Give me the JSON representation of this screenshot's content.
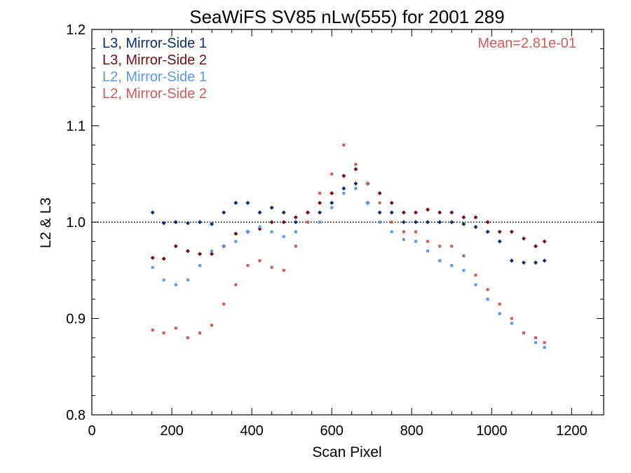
{
  "chart_data": {
    "type": "scatter",
    "title": "SeaWiFS SV85 nLw(555) for 2001 289",
    "xlabel": "Scan Pixel",
    "ylabel": "L2 & L3",
    "xlim": [
      0,
      1280
    ],
    "ylim": [
      0.8,
      1.2
    ],
    "x_ticks": [
      0,
      200,
      400,
      600,
      800,
      1000,
      1200
    ],
    "y_ticks": [
      0.8,
      0.9,
      1.0,
      1.1,
      1.2
    ],
    "x_tick_labels": [
      "0",
      "200",
      "400",
      "600",
      "800",
      "1000",
      "1200"
    ],
    "y_tick_labels": [
      "0.8",
      "0.9",
      "1.0",
      "1.1",
      "1.2"
    ],
    "reference_line": 1.0,
    "annotation": "Mean=2.81e-01",
    "annotation_color": "#cd5c5c",
    "legend_position": "top-left",
    "series": [
      {
        "name": "L3, Mirror-Side 1",
        "color": "#0b2f6b",
        "marker": "diamond",
        "points": [
          [
            152,
            1.01
          ],
          [
            180,
            0.999
          ],
          [
            210,
            1.0
          ],
          [
            240,
            0.999
          ],
          [
            270,
            1.0
          ],
          [
            300,
            0.998
          ],
          [
            330,
            1.01
          ],
          [
            360,
            1.02
          ],
          [
            390,
            1.02
          ],
          [
            420,
            1.01
          ],
          [
            450,
            1.015
          ],
          [
            480,
            1.01
          ],
          [
            510,
            1.0
          ],
          [
            540,
            1.01
          ],
          [
            570,
            1.01
          ],
          [
            600,
            1.02
          ],
          [
            630,
            1.035
          ],
          [
            660,
            1.04
          ],
          [
            690,
            1.02
          ],
          [
            720,
            1.01
          ],
          [
            750,
            1.01
          ],
          [
            780,
            1.0
          ],
          [
            810,
            1.0
          ],
          [
            840,
            1.0
          ],
          [
            870,
            1.0
          ],
          [
            900,
            1.0
          ],
          [
            930,
            0.998
          ],
          [
            960,
            0.995
          ],
          [
            990,
            0.99
          ],
          [
            1020,
            0.98
          ],
          [
            1050,
            0.96
          ],
          [
            1080,
            0.958
          ],
          [
            1110,
            0.958
          ],
          [
            1132,
            0.96
          ]
        ]
      },
      {
        "name": "L3, Mirror-Side 2",
        "color": "#6e0f1a",
        "marker": "diamond",
        "points": [
          [
            152,
            0.963
          ],
          [
            180,
            0.962
          ],
          [
            210,
            0.975
          ],
          [
            240,
            0.97
          ],
          [
            270,
            0.967
          ],
          [
            300,
            0.967
          ],
          [
            330,
            0.975
          ],
          [
            360,
            0.988
          ],
          [
            390,
            0.99
          ],
          [
            420,
            0.993
          ],
          [
            450,
            1.0
          ],
          [
            480,
            1.0
          ],
          [
            510,
            1.005
          ],
          [
            540,
            1.01
          ],
          [
            570,
            1.02
          ],
          [
            600,
            1.03
          ],
          [
            630,
            1.048
          ],
          [
            660,
            1.055
          ],
          [
            690,
            1.04
          ],
          [
            720,
            1.03
          ],
          [
            750,
            1.02
          ],
          [
            780,
            1.01
          ],
          [
            810,
            1.01
          ],
          [
            840,
            1.013
          ],
          [
            870,
            1.01
          ],
          [
            900,
            1.01
          ],
          [
            930,
            1.005
          ],
          [
            960,
            1.005
          ],
          [
            990,
            1.0
          ],
          [
            1020,
            0.99
          ],
          [
            1050,
            0.99
          ],
          [
            1080,
            0.983
          ],
          [
            1110,
            0.975
          ],
          [
            1132,
            0.98
          ]
        ]
      },
      {
        "name": "L2, Mirror-Side 1",
        "color": "#5f95e8",
        "marker": "square",
        "points": [
          [
            152,
            0.953
          ],
          [
            180,
            0.94
          ],
          [
            210,
            0.935
          ],
          [
            240,
            0.94
          ],
          [
            270,
            0.955
          ],
          [
            300,
            0.97
          ],
          [
            330,
            0.975
          ],
          [
            360,
            0.98
          ],
          [
            390,
            0.99
          ],
          [
            420,
            0.995
          ],
          [
            450,
            0.99
          ],
          [
            480,
            0.985
          ],
          [
            510,
            0.99
          ],
          [
            540,
            1.0
          ],
          [
            570,
            1.0
          ],
          [
            600,
            1.015
          ],
          [
            630,
            1.03
          ],
          [
            660,
            1.035
          ],
          [
            690,
            1.02
          ],
          [
            720,
            1.0
          ],
          [
            750,
            0.99
          ],
          [
            780,
            0.982
          ],
          [
            810,
            0.98
          ],
          [
            840,
            0.97
          ],
          [
            870,
            0.96
          ],
          [
            900,
            0.955
          ],
          [
            930,
            0.95
          ],
          [
            960,
            0.935
          ],
          [
            990,
            0.92
          ],
          [
            1020,
            0.905
          ],
          [
            1050,
            0.895
          ],
          [
            1080,
            0.885
          ],
          [
            1110,
            0.875
          ],
          [
            1132,
            0.87
          ]
        ]
      },
      {
        "name": "L2, Mirror-Side 2",
        "color": "#cd5c5c",
        "marker": "square",
        "points": [
          [
            152,
            0.888
          ],
          [
            180,
            0.885
          ],
          [
            210,
            0.89
          ],
          [
            240,
            0.88
          ],
          [
            270,
            0.885
          ],
          [
            300,
            0.893
          ],
          [
            330,
            0.915
          ],
          [
            360,
            0.935
          ],
          [
            390,
            0.955
          ],
          [
            420,
            0.96
          ],
          [
            450,
            0.953
          ],
          [
            480,
            0.95
          ],
          [
            510,
            0.975
          ],
          [
            540,
            1.0
          ],
          [
            570,
            1.03
          ],
          [
            600,
            1.05
          ],
          [
            630,
            1.08
          ],
          [
            660,
            1.06
          ],
          [
            690,
            1.04
          ],
          [
            720,
            1.02
          ],
          [
            750,
            1.0
          ],
          [
            780,
            0.99
          ],
          [
            810,
            0.99
          ],
          [
            840,
            0.98
          ],
          [
            870,
            0.975
          ],
          [
            900,
            0.975
          ],
          [
            930,
            0.965
          ],
          [
            960,
            0.945
          ],
          [
            990,
            0.93
          ],
          [
            1020,
            0.915
          ],
          [
            1050,
            0.9
          ],
          [
            1080,
            0.885
          ],
          [
            1110,
            0.88
          ],
          [
            1132,
            0.875
          ]
        ]
      }
    ]
  }
}
